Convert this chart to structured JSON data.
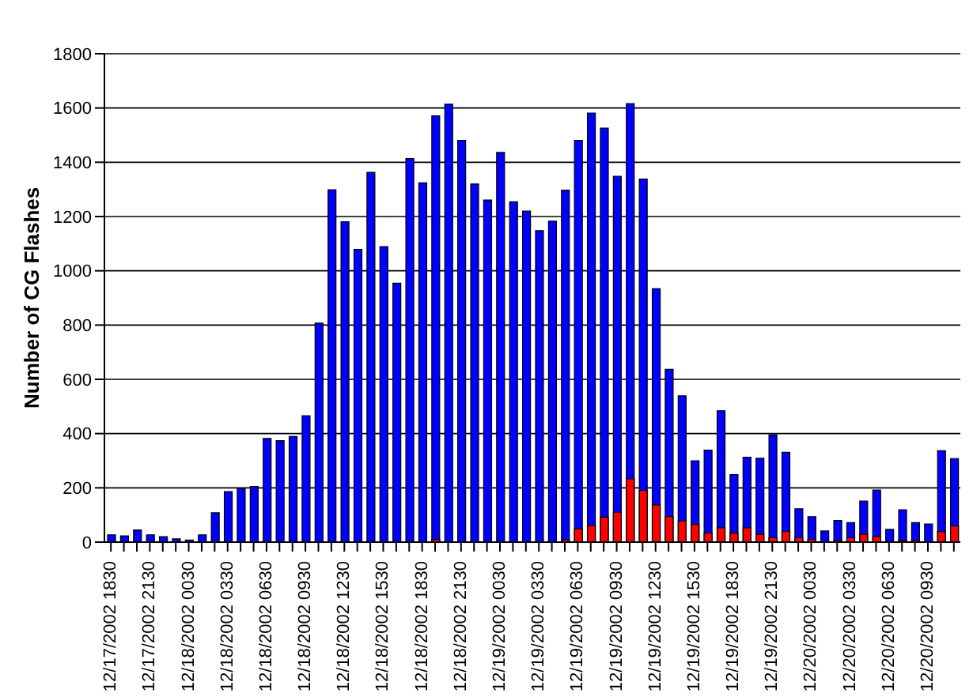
{
  "chart_data": {
    "type": "bar",
    "ylabel": "Number of CG Flashes",
    "categories": [
      "12/17/2002 1830",
      null,
      null,
      "12/17/2002 2130",
      null,
      null,
      "12/18/2002 0030",
      null,
      null,
      "12/18/2002 0330",
      null,
      null,
      "12/18/2002 0630",
      null,
      null,
      "12/18/2002 0930",
      null,
      null,
      "12/18/2002 1230",
      null,
      null,
      "12/18/2002 1530",
      null,
      null,
      "12/18/2002 1830",
      null,
      null,
      "12/18/2002 2130",
      null,
      null,
      "12/19/2002 0030",
      null,
      null,
      "12/19/2002 0330",
      null,
      null,
      "12/19/2002 0630",
      null,
      null,
      "12/19/2002 0930",
      null,
      null,
      "12/19/2002 1230",
      null,
      null,
      "12/19/2002 1530",
      null,
      null,
      "12/19/2002 1830",
      null,
      null,
      "12/19/2002 2130",
      null,
      null,
      "12/20/2002 0030",
      null,
      null,
      "12/20/2002 0330",
      null,
      null,
      "12/20/2002 0630",
      null,
      null,
      "12/20/2002 0930",
      null,
      null
    ],
    "series": [
      {
        "color": "#0000ff",
        "values": [
          27,
          23,
          45,
          27,
          20,
          12,
          8,
          27,
          108,
          186,
          198,
          205,
          382,
          374,
          389,
          466,
          807,
          1299,
          1181,
          1079,
          1363,
          1089,
          954,
          1414,
          1324,
          1571,
          1614,
          1481,
          1320,
          1261,
          1436,
          1254,
          1220,
          1148,
          1183,
          1297,
          1481,
          1581,
          1526,
          1348,
          1616,
          1338,
          934,
          637,
          539,
          300,
          339,
          484,
          249,
          313,
          309,
          396,
          331,
          123,
          94,
          41,
          80,
          72,
          151,
          192,
          47,
          119,
          72,
          67,
          337,
          308
        ]
      },
      {
        "color": "#ff0000",
        "values": [
          0,
          0,
          0,
          0,
          0,
          0,
          0,
          0,
          0,
          0,
          0,
          0,
          0,
          0,
          0,
          0,
          0,
          0,
          0,
          0,
          0,
          0,
          0,
          0,
          0,
          10,
          0,
          0,
          0,
          0,
          0,
          0,
          0,
          0,
          0,
          8,
          49,
          61,
          92,
          110,
          233,
          190,
          137,
          94,
          78,
          65,
          33,
          53,
          33,
          53,
          29,
          16,
          39,
          16,
          10,
          0,
          6,
          16,
          29,
          20,
          0,
          6,
          6,
          0,
          39,
          59
        ]
      }
    ],
    "ylim": [
      0,
      1800
    ],
    "yticks": [
      0,
      200,
      400,
      600,
      800,
      1000,
      1200,
      1400,
      1600,
      1800
    ],
    "grid": "y",
    "legend": false
  }
}
